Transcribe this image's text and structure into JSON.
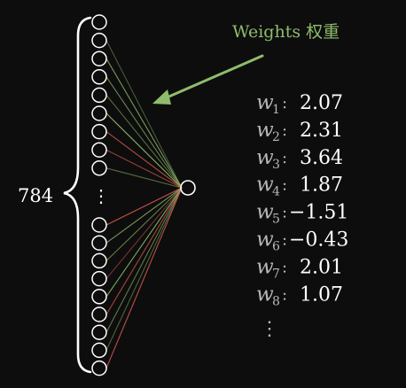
{
  "input_count_label": "784",
  "annotation": {
    "text": "Weights 权重",
    "arrow_color": "#8fbc6c"
  },
  "colors": {
    "positive_weight": "#8fbc6c",
    "negative_weight": "#d8584f",
    "neuron_stroke": "#ffffff",
    "background": "#0d0d0d"
  },
  "weights": [
    {
      "symbol": "w",
      "sub": "1",
      "value": "2.07"
    },
    {
      "symbol": "w",
      "sub": "2",
      "value": "2.31"
    },
    {
      "symbol": "w",
      "sub": "3",
      "value": "3.64"
    },
    {
      "symbol": "w",
      "sub": "4",
      "value": "1.87"
    },
    {
      "symbol": "w",
      "sub": "5",
      "value": "−1.51"
    },
    {
      "symbol": "w",
      "sub": "6",
      "value": "−0.43"
    },
    {
      "symbol": "w",
      "sub": "7",
      "value": "2.01"
    },
    {
      "symbol": "w",
      "sub": "8",
      "value": "1.07"
    }
  ],
  "continuation_symbol": "⋮",
  "edge_signs": [
    "+",
    "+",
    "+",
    "+",
    "+",
    "-",
    "-",
    "+",
    "-",
    "+",
    "+",
    "-",
    "+",
    "-",
    "+",
    "+",
    "-",
    "-",
    "+",
    "+",
    "-",
    "+"
  ]
}
